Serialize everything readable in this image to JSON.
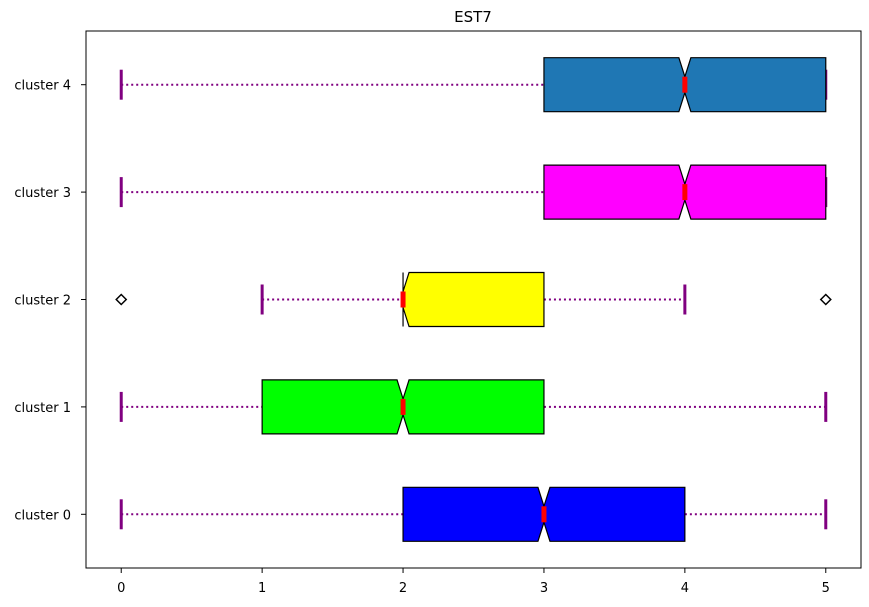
{
  "chart_data": {
    "type": "boxplot",
    "orientation": "horizontal",
    "title": "EST7",
    "xlabel": "",
    "ylabel": "",
    "xlim": [
      -0.25,
      5.25
    ],
    "xticks": [
      "0",
      "1",
      "2",
      "3",
      "4",
      "5"
    ],
    "grid": false,
    "whisker_color": "#800080",
    "median_color": "#ff0000",
    "categories": [
      "cluster 0",
      "cluster 1",
      "cluster 2",
      "cluster 3",
      "cluster 4"
    ],
    "boxes": [
      {
        "label": "cluster 0",
        "whislo": 0,
        "q1": 2,
        "med": 3,
        "q3": 4,
        "whishi": 5,
        "fliers": [],
        "color": "#0000ff"
      },
      {
        "label": "cluster 1",
        "whislo": 0,
        "q1": 1,
        "med": 2,
        "q3": 3,
        "whishi": 5,
        "fliers": [],
        "color": "#00ff00"
      },
      {
        "label": "cluster 2",
        "whislo": 1,
        "q1": 2,
        "med": 2,
        "q3": 3,
        "whishi": 4,
        "fliers": [
          0,
          5
        ],
        "color": "#ffff00"
      },
      {
        "label": "cluster 3",
        "whislo": 0,
        "q1": 3,
        "med": 4,
        "q3": 5,
        "whishi": 5,
        "fliers": [],
        "color": "#ff00ff"
      },
      {
        "label": "cluster 4",
        "whislo": 0,
        "q1": 3,
        "med": 4,
        "q3": 5,
        "whishi": 5,
        "fliers": [],
        "color": "#1f77b4"
      }
    ]
  }
}
